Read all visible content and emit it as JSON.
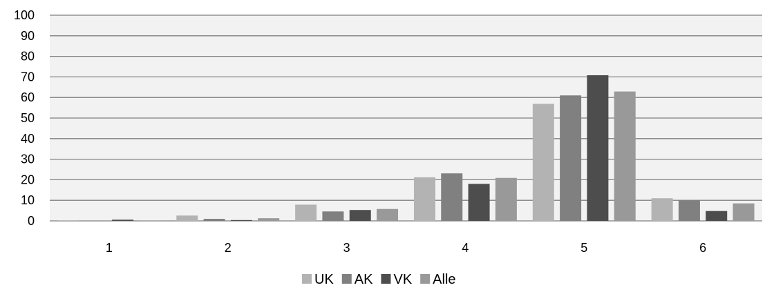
{
  "chart_data": {
    "type": "bar",
    "title": "",
    "xlabel": "",
    "ylabel": "",
    "categories": [
      "1",
      "2",
      "3",
      "4",
      "5",
      "6"
    ],
    "ylim": [
      0,
      100
    ],
    "yticks": [
      0,
      10,
      20,
      30,
      40,
      50,
      60,
      70,
      80,
      90,
      100
    ],
    "grid": true,
    "legend_position": "bottom",
    "series": [
      {
        "name": "UK",
        "color": "#b3b3b3",
        "values": [
          0.1,
          2.6,
          7.9,
          21.2,
          56.9,
          11.0
        ]
      },
      {
        "name": "AK",
        "color": "#808080",
        "values": [
          0.1,
          1.0,
          4.6,
          23.1,
          61.0,
          10.2
        ]
      },
      {
        "name": "VK",
        "color": "#4d4d4d",
        "values": [
          0.6,
          0.4,
          5.3,
          18.0,
          70.8,
          4.8
        ]
      },
      {
        "name": "Alle",
        "color": "#999999",
        "values": [
          0.2,
          1.3,
          5.8,
          20.9,
          62.9,
          8.5
        ]
      }
    ]
  }
}
